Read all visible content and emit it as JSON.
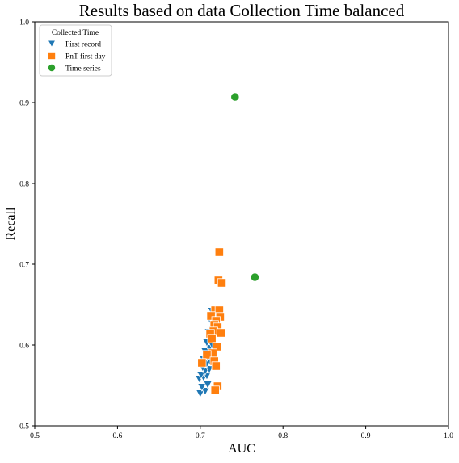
{
  "chart_data": {
    "type": "scatter",
    "title": "Results based on data Collection Time balanced",
    "xlabel": "AUC",
    "ylabel": "Recall",
    "xlim": [
      0.5,
      1.0
    ],
    "ylim": [
      0.5,
      1.0
    ],
    "xticks": [
      "0.5",
      "0.6",
      "0.7",
      "0.8",
      "0.9",
      "1.0"
    ],
    "yticks": [
      "0.5",
      "0.6",
      "0.7",
      "0.8",
      "0.9",
      "1.0"
    ],
    "grid": false,
    "legend": {
      "title": "Collected Time",
      "placement": "top-left"
    },
    "series": [
      {
        "name": "First record",
        "marker": "triangle-down",
        "color": "#1f77b4",
        "points": [
          [
            0.7,
            0.54
          ],
          [
            0.706,
            0.543
          ],
          [
            0.702,
            0.548
          ],
          [
            0.709,
            0.551
          ],
          [
            0.699,
            0.558
          ],
          [
            0.704,
            0.56
          ],
          [
            0.708,
            0.562
          ],
          [
            0.701,
            0.563
          ],
          [
            0.706,
            0.568
          ],
          [
            0.711,
            0.57
          ],
          [
            0.703,
            0.572
          ],
          [
            0.708,
            0.577
          ],
          [
            0.712,
            0.579
          ],
          [
            0.704,
            0.582
          ],
          [
            0.709,
            0.585
          ],
          [
            0.713,
            0.588
          ],
          [
            0.706,
            0.592
          ],
          [
            0.711,
            0.596
          ],
          [
            0.715,
            0.599
          ],
          [
            0.708,
            0.603
          ],
          [
            0.713,
            0.608
          ],
          [
            0.717,
            0.612
          ],
          [
            0.71,
            0.616
          ],
          [
            0.715,
            0.62
          ],
          [
            0.718,
            0.626
          ],
          [
            0.712,
            0.631
          ],
          [
            0.716,
            0.636
          ],
          [
            0.714,
            0.642
          ],
          [
            0.719,
            0.644
          ]
        ]
      },
      {
        "name": "PnT first day",
        "marker": "square",
        "color": "#ff7f0e",
        "points": [
          [
            0.723,
            0.715
          ],
          [
            0.722,
            0.68
          ],
          [
            0.726,
            0.677
          ],
          [
            0.718,
            0.643
          ],
          [
            0.723,
            0.643
          ],
          [
            0.713,
            0.636
          ],
          [
            0.724,
            0.635
          ],
          [
            0.719,
            0.63
          ],
          [
            0.717,
            0.625
          ],
          [
            0.721,
            0.622
          ],
          [
            0.716,
            0.617
          ],
          [
            0.725,
            0.615
          ],
          [
            0.712,
            0.614
          ],
          [
            0.714,
            0.608
          ],
          [
            0.72,
            0.598
          ],
          [
            0.715,
            0.59
          ],
          [
            0.708,
            0.588
          ],
          [
            0.717,
            0.58
          ],
          [
            0.702,
            0.578
          ],
          [
            0.719,
            0.574
          ],
          [
            0.721,
            0.549
          ],
          [
            0.718,
            0.544
          ]
        ]
      },
      {
        "name": "Time series",
        "marker": "circle",
        "color": "#2ca02c",
        "points": [
          [
            0.742,
            0.907
          ],
          [
            0.766,
            0.684
          ]
        ]
      }
    ]
  }
}
